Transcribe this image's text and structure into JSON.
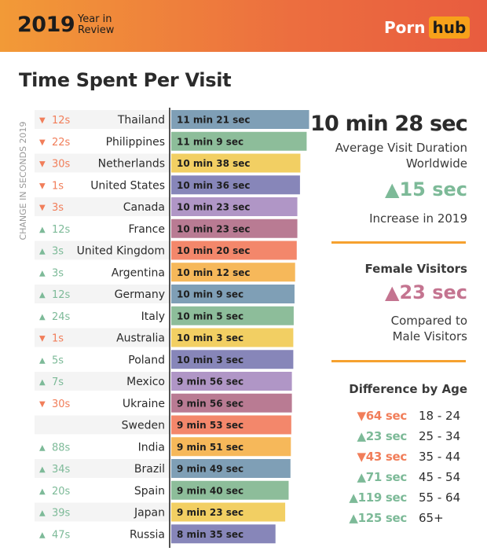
{
  "header": {
    "year": "2019",
    "subtitle": "Year in Review",
    "brand_left": "Porn",
    "brand_right": "hub"
  },
  "page_title": "Time Spent Per Visit",
  "vertical_label": "CHANGE IN SECONDS 2019",
  "colors": {
    "header_start": "#f29a37",
    "header_end": "#e85c3f",
    "brand_hub_bg": "#f7a11a",
    "up_green": "#7dba98",
    "up_pink": "#c47490",
    "down_orange": "#f17e5a",
    "divider": "#f6a12f",
    "bar_palette": [
      "#7f9fb6",
      "#8dbd9a",
      "#f2cf63",
      "#8786b9",
      "#b096c6",
      "#b97b93",
      "#f3876b",
      "#f6b85a"
    ]
  },
  "chart_data": {
    "type": "bar",
    "orientation": "horizontal",
    "title": "Time Spent Per Visit",
    "unit": "seconds",
    "categories": [
      "Thailand",
      "Philippines",
      "Netherlands",
      "United States",
      "Canada",
      "France",
      "United Kingdom",
      "Argentina",
      "Germany",
      "Italy",
      "Australia",
      "Poland",
      "Mexico",
      "Ukraine",
      "Sweden",
      "India",
      "Brazil",
      "Spain",
      "Japan",
      "Russia"
    ],
    "values": [
      681,
      669,
      638,
      636,
      623,
      623,
      620,
      612,
      609,
      605,
      603,
      603,
      596,
      596,
      593,
      591,
      589,
      580,
      563,
      515
    ],
    "value_labels": [
      "11 min 21 sec",
      "11 min 9 sec",
      "10 min 38 sec",
      "10 min 36 sec",
      "10 min 23 sec",
      "10 min 23 sec",
      "10 min 20 sec",
      "10 min 12 sec",
      "10 min 9 sec",
      "10 min 5 sec",
      "10 min 3 sec",
      "10 min 3 sec",
      "9 min 56 sec",
      "9 min 56 sec",
      "9 min 53 sec",
      "9 min 51 sec",
      "9 min 49 sec",
      "9 min 40 sec",
      "9 min 23 sec",
      "8 min 35 sec"
    ],
    "changes": [
      {
        "dir": "down",
        "text": "12s"
      },
      {
        "dir": "down",
        "text": "22s"
      },
      {
        "dir": "down",
        "text": "30s"
      },
      {
        "dir": "down",
        "text": "1s"
      },
      {
        "dir": "down",
        "text": "3s"
      },
      {
        "dir": "up",
        "text": "12s"
      },
      {
        "dir": "up",
        "text": "3s"
      },
      {
        "dir": "up",
        "text": "3s"
      },
      {
        "dir": "up",
        "text": "12s"
      },
      {
        "dir": "up",
        "text": "24s"
      },
      {
        "dir": "down",
        "text": "1s"
      },
      {
        "dir": "up",
        "text": "5s"
      },
      {
        "dir": "up",
        "text": "7s"
      },
      {
        "dir": "down",
        "text": "30s"
      },
      {
        "dir": "none",
        "text": ""
      },
      {
        "dir": "up",
        "text": "88s"
      },
      {
        "dir": "up",
        "text": "34s"
      },
      {
        "dir": "up",
        "text": "20s"
      },
      {
        "dir": "up",
        "text": "39s"
      },
      {
        "dir": "up",
        "text": "47s"
      }
    ],
    "arrow_up": "▲",
    "arrow_down": "▼"
  },
  "summary": {
    "worldwide_value": "10 min 28 sec",
    "worldwide_label_1": "Average Visit Duration",
    "worldwide_label_2": "Worldwide",
    "increase_value": "▲15 sec",
    "increase_label": "Increase in 2019",
    "female_title": "Female Visitors",
    "female_value": "▲23 sec",
    "female_label_1": "Compared to",
    "female_label_2": "Male Visitors",
    "age_title": "Difference by Age",
    "age_rows": [
      {
        "delta": "▼64 sec",
        "dir": "down",
        "range": "18 - 24"
      },
      {
        "delta": "▲23 sec",
        "dir": "up",
        "range": "25 - 34"
      },
      {
        "delta": "▼43 sec",
        "dir": "down",
        "range": "35 - 44"
      },
      {
        "delta": "▲71 sec",
        "dir": "up",
        "range": "45 - 54"
      },
      {
        "delta": "▲119 sec",
        "dir": "up",
        "range": "55 - 64"
      },
      {
        "delta": "▲125 sec",
        "dir": "up",
        "range": "65+"
      }
    ]
  }
}
